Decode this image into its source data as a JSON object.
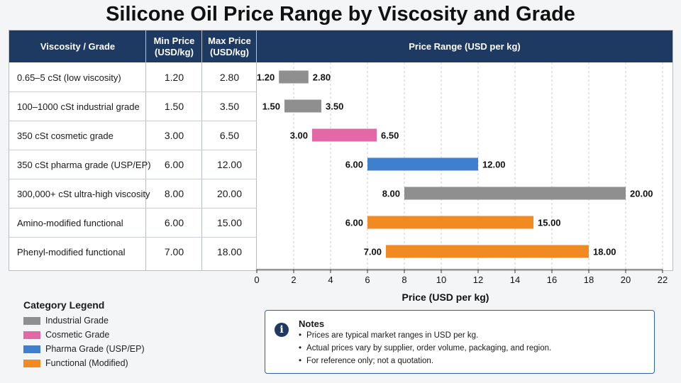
{
  "title": "Silicone Oil Price Range by Viscosity and Grade",
  "table": {
    "headers": {
      "grade": "Viscosity / Grade",
      "min": "Min Price\n(USD/kg)",
      "max": "Max Price\n(USD/kg)",
      "range": "Price Range (USD per kg)"
    }
  },
  "chart_data": {
    "type": "bar",
    "subtype": "floating-range",
    "title": "Price Range (USD per kg)",
    "xlabel": "Price (USD per kg)",
    "xlim": [
      0,
      22
    ],
    "xticks": [
      0,
      2,
      4,
      6,
      8,
      10,
      12,
      14,
      16,
      18,
      20,
      22
    ],
    "grid": true,
    "categories": [
      "0.65–5 cSt (low viscosity)",
      "100–1000 cSt industrial grade",
      "350 cSt cosmetic grade",
      "350 cSt pharma grade (USP/EP)",
      "300,000+ cSt ultra-high viscosity",
      "Amino-modified functional",
      "Phenyl-modified functional"
    ],
    "min_labels": [
      "1.20",
      "1.50",
      "3.00",
      "6.00",
      "8.00",
      "6.00",
      "7.00"
    ],
    "max_labels": [
      "2.80",
      "3.50",
      "6.50",
      "12.00",
      "20.00",
      "15.00",
      "18.00"
    ],
    "min": [
      1.2,
      1.5,
      3.0,
      6.0,
      8.0,
      6.0,
      7.0
    ],
    "max": [
      2.8,
      3.5,
      6.5,
      12.0,
      20.0,
      15.0,
      18.0
    ],
    "group": [
      "industrial",
      "industrial",
      "cosmetic",
      "pharma",
      "industrial",
      "functional",
      "functional"
    ],
    "colors": {
      "industrial": "#8f8f8f",
      "cosmetic": "#e268a6",
      "pharma": "#3f7fd0",
      "functional": "#f28a24"
    }
  },
  "legend": {
    "title": "Category Legend",
    "items": [
      {
        "label": "Industrial Grade",
        "color": "#8f8f8f"
      },
      {
        "label": "Cosmetic Grade",
        "color": "#e268a6"
      },
      {
        "label": "Pharma Grade (USP/EP)",
        "color": "#3f7fd0"
      },
      {
        "label": "Functional (Modified)",
        "color": "#f28a24"
      }
    ]
  },
  "notes": {
    "title": "Notes",
    "items": [
      "Prices are typical market ranges in USD per kg.",
      "Actual prices vary by supplier, order volume, packaging, and region.",
      "For reference only; not a quotation."
    ]
  }
}
